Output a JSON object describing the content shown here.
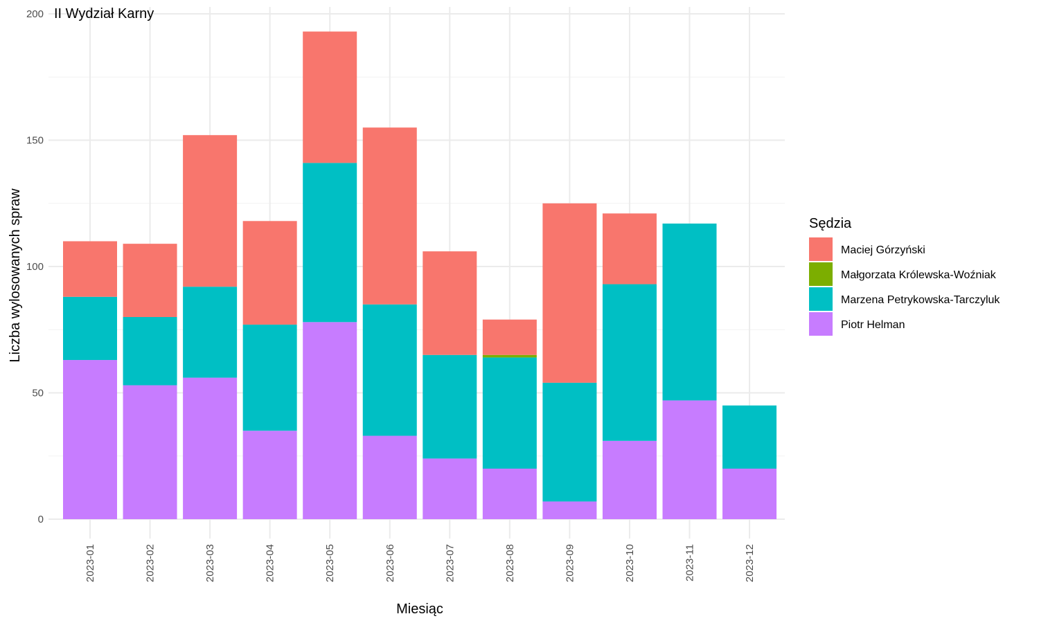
{
  "chart_data": {
    "type": "bar",
    "stacked": true,
    "title": "II Wydział Karny",
    "xlabel": "Miesiąc",
    "ylabel": "Liczba wylosowanych spraw",
    "ylim": [
      0,
      200
    ],
    "yticks": [
      0,
      50,
      100,
      150,
      200
    ],
    "grid": true,
    "categories": [
      "2023-01",
      "2023-02",
      "2023-03",
      "2023-04",
      "2023-05",
      "2023-06",
      "2023-07",
      "2023-08",
      "2023-09",
      "2023-10",
      "2023-11",
      "2023-12"
    ],
    "legend": {
      "title": "Sędzia",
      "position": "right"
    },
    "stack_order_bottom_to_top": [
      "Piotr Helman",
      "Marzena Petrykowska-Tarczyluk",
      "Małgorzata Królewska-Woźniak",
      "Maciej Górzyński"
    ],
    "series": [
      {
        "name": "Maciej Górzyński",
        "color": "#F8766D",
        "values": [
          22,
          29,
          60,
          41,
          52,
          70,
          41,
          14,
          71,
          28,
          0,
          0
        ]
      },
      {
        "name": "Małgorzata Królewska-Woźniak",
        "color": "#7CAE00",
        "values": [
          0,
          0,
          0,
          0,
          0,
          0,
          0,
          1,
          0,
          0,
          0,
          0
        ]
      },
      {
        "name": "Marzena Petrykowska-Tarczyluk",
        "color": "#00BFC4",
        "values": [
          25,
          27,
          36,
          42,
          63,
          52,
          41,
          44,
          47,
          62,
          70,
          25
        ]
      },
      {
        "name": "Piotr Helman",
        "color": "#C77CFF",
        "values": [
          63,
          53,
          56,
          35,
          78,
          33,
          24,
          20,
          7,
          31,
          47,
          20
        ]
      }
    ]
  }
}
